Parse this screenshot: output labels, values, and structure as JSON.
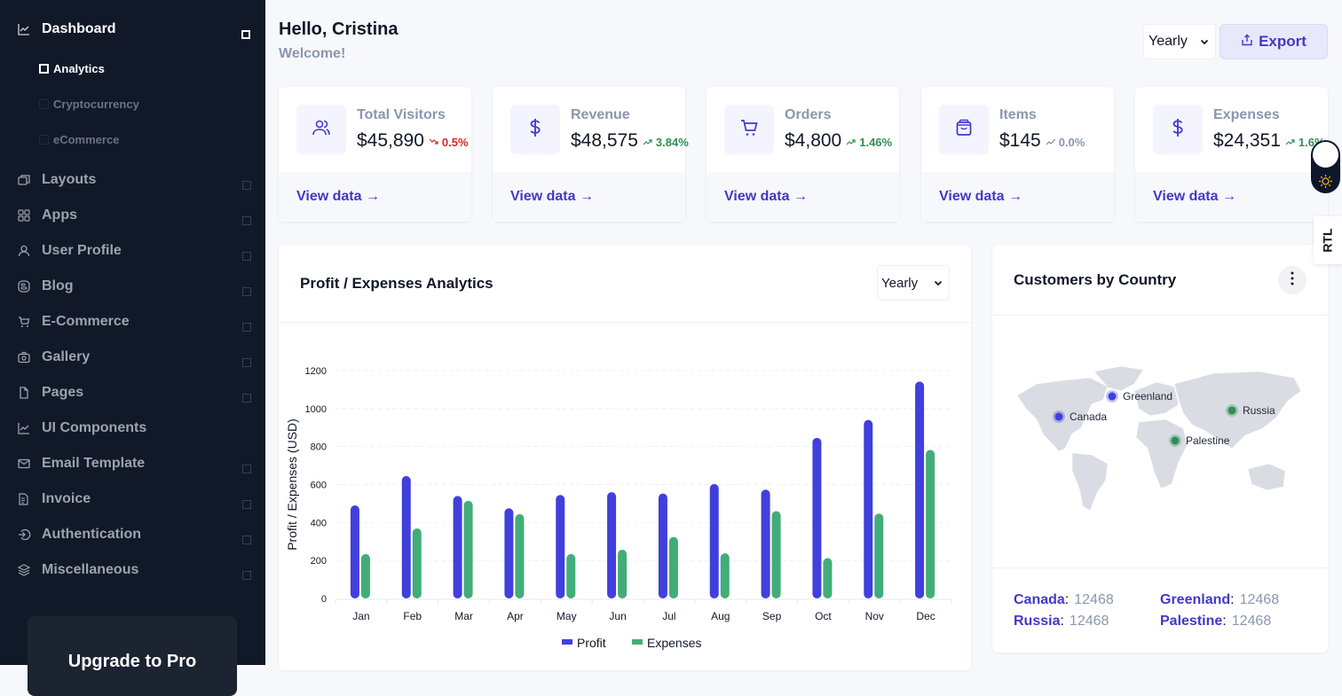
{
  "sidebar": {
    "items": [
      {
        "label": "Dashboard",
        "icon": "chart-line-icon",
        "active": true,
        "expandable": true
      },
      {
        "label": "Layouts",
        "icon": "layers-window-icon",
        "expandable": true
      },
      {
        "label": "Apps",
        "icon": "grid-icon",
        "expandable": true
      },
      {
        "label": "User Profile",
        "icon": "user-icon",
        "expandable": true
      },
      {
        "label": "Blog",
        "icon": "blogger-icon",
        "expandable": true
      },
      {
        "label": "E-Commerce",
        "icon": "cart-icon",
        "expandable": true
      },
      {
        "label": "Gallery",
        "icon": "camera-icon",
        "expandable": true
      },
      {
        "label": "Pages",
        "icon": "file-icon",
        "expandable": true
      },
      {
        "label": "UI Components",
        "icon": "chart-line-icon",
        "expandable": false
      },
      {
        "label": "Email Template",
        "icon": "mail-icon",
        "expandable": true
      },
      {
        "label": "Invoice",
        "icon": "invoice-icon",
        "expandable": true
      },
      {
        "label": "Authentication",
        "icon": "login-icon",
        "expandable": true
      },
      {
        "label": "Miscellaneous",
        "icon": "stack-icon",
        "expandable": true
      }
    ],
    "dashboard_sub": [
      {
        "label": "Analytics",
        "active": true
      },
      {
        "label": "Cryptocurrency",
        "active": false
      },
      {
        "label": "eCommerce",
        "active": false
      }
    ],
    "upgrade_label": "Upgrade to Pro"
  },
  "header": {
    "greeting": "Hello, Cristina",
    "subtitle": "Welcome!",
    "period": "Yearly",
    "export_label": "Export"
  },
  "stats": [
    {
      "title": "Total Visitors",
      "value": "$45,890",
      "change": "0.5%",
      "direction": "down",
      "icon": "users-icon",
      "link": "View data →"
    },
    {
      "title": "Revenue",
      "value": "$48,575",
      "change": "3.84%",
      "direction": "up",
      "icon": "dollar-icon",
      "link": "View data →"
    },
    {
      "title": "Orders",
      "value": "$4,800",
      "change": "1.46%",
      "direction": "up",
      "icon": "cart-icon",
      "link": "View data →"
    },
    {
      "title": "Items",
      "value": "$145",
      "change": "0.0%",
      "direction": "flat",
      "icon": "shopping-bag-icon",
      "link": "View data →"
    },
    {
      "title": "Expenses",
      "value": "$24,351",
      "change": "1.6%",
      "direction": "up",
      "icon": "dollar-icon",
      "link": "View data →"
    }
  ],
  "analytics": {
    "title": "Profit / Expenses Analytics",
    "period": "Yearly"
  },
  "colors": {
    "profit": "#4040dc",
    "expenses": "#42ad78",
    "accent": "#4338ca",
    "sidebar_bg": "#111827",
    "trend_up": "#2f8f55",
    "trend_down": "#dc2626"
  },
  "chart_data": {
    "type": "bar",
    "title": "Profit / Expenses Analytics",
    "xlabel": "",
    "ylabel": "Profit / Expenses (USD)",
    "categories": [
      "Jan",
      "Feb",
      "Mar",
      "Apr",
      "May",
      "Jun",
      "Jul",
      "Aug",
      "Sep",
      "Oct",
      "Nov",
      "Dec"
    ],
    "series": [
      {
        "name": "Profit",
        "values": [
          490,
          645,
          540,
          475,
          545,
          560,
          553,
          603,
          573,
          846,
          940,
          1142
        ]
      },
      {
        "name": "Expenses",
        "values": [
          234,
          369,
          514,
          444,
          234,
          257,
          324,
          238,
          460,
          213,
          447,
          782
        ]
      }
    ],
    "ylim": [
      0,
      1200
    ],
    "yticks": [
      0,
      200,
      400,
      600,
      800,
      1000,
      1200
    ],
    "grid": true,
    "legend": "bottom-center"
  },
  "customers": {
    "title": "Customers by Country",
    "markers": [
      {
        "name": "Canada",
        "group": "blue"
      },
      {
        "name": "Greenland",
        "group": "blue"
      },
      {
        "name": "Russia",
        "group": "green"
      },
      {
        "name": "Palestine",
        "group": "green"
      }
    ],
    "legend": [
      {
        "country": "Canada",
        "value": "12468"
      },
      {
        "country": "Greenland",
        "value": "12468"
      },
      {
        "country": "Russia",
        "value": "12468"
      },
      {
        "country": "Palestine",
        "value": "12468"
      }
    ]
  },
  "rtl_label": "RTL"
}
